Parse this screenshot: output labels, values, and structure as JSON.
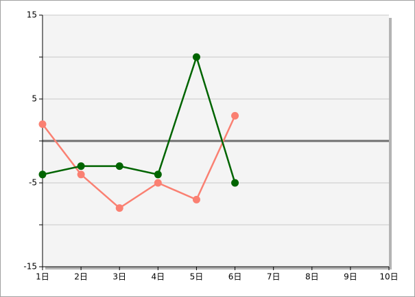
{
  "chart_data": {
    "type": "line",
    "x": [
      1,
      2,
      3,
      4,
      5,
      6
    ],
    "series": [
      {
        "color": "#006400",
        "values": [
          -4,
          -3,
          -3,
          -4,
          10,
          -5
        ]
      },
      {
        "color": "#fa8072",
        "values": [
          2,
          -4,
          -8,
          -5,
          -7,
          3
        ]
      }
    ],
    "xlim": [
      1,
      10
    ],
    "xticks": [
      {
        "value": 1,
        "label": "1日"
      },
      {
        "value": 2,
        "label": "2日"
      },
      {
        "value": 3,
        "label": "3日"
      },
      {
        "value": 4,
        "label": "4日"
      },
      {
        "value": 5,
        "label": "5日"
      },
      {
        "value": 6,
        "label": "6日"
      },
      {
        "value": 7,
        "label": "7日"
      },
      {
        "value": 8,
        "label": "8日"
      },
      {
        "value": 9,
        "label": "9日"
      },
      {
        "value": 10,
        "label": "10日"
      }
    ],
    "ylim": [
      -15,
      15
    ],
    "yticks": [
      -15,
      {
        "value": -10,
        "label": null
      },
      -5,
      {
        "value": 0,
        "label": null
      },
      5,
      {
        "value": 10,
        "label": null
      },
      15
    ],
    "grid": true,
    "zero_line": true
  }
}
